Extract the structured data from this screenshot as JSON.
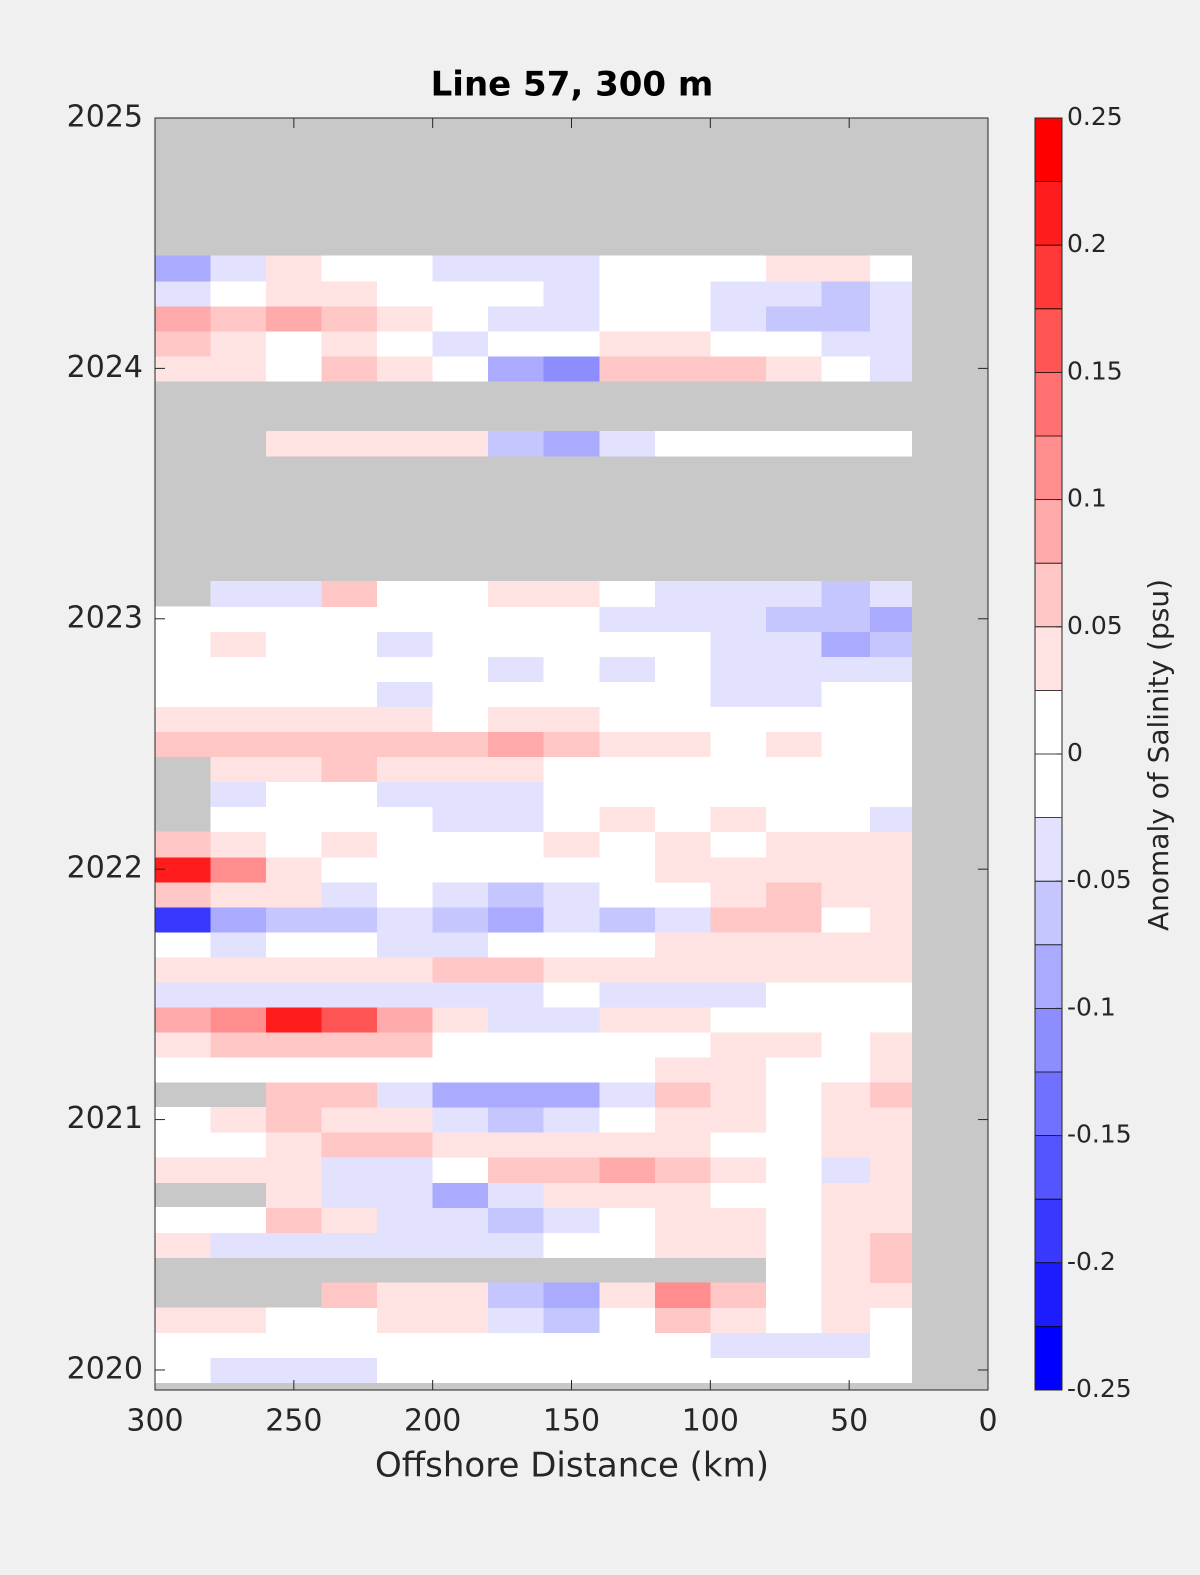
{
  "chart_data": {
    "type": "contourf",
    "title": "Line 57, 300 m",
    "x_label": "Offshore Distance (km)",
    "colorbar_label": "Anomaly of Salinity (psu)",
    "xlim": [
      300,
      0
    ],
    "xticks": [
      300,
      250,
      200,
      150,
      100,
      50,
      0
    ],
    "ylim": [
      2019.92,
      2025
    ],
    "yticks": [
      2020,
      2021,
      2022,
      2023,
      2024,
      2025
    ],
    "clim": [
      -0.25,
      0.25
    ],
    "cticks": [
      -0.25,
      -0.2,
      -0.15,
      -0.1,
      -0.05,
      0,
      0.05,
      0.1,
      0.15,
      0.2,
      0.25
    ],
    "colors": [
      "#0000ff",
      "#1c1cff",
      "#3838ff",
      "#5555ff",
      "#7171ff",
      "#8d8dff",
      "#aaaaff",
      "#c6c6ff",
      "#e2e2ff",
      "#ffffff",
      "#ffffff",
      "#ffe2e2",
      "#ffc6c6",
      "#ffaaaa",
      "#ff8d8d",
      "#ff7171",
      "#ff5555",
      "#ff3838",
      "#ff1c1c",
      "#ff0000"
    ],
    "missing_color": "#c8c8c8",
    "x": [
      290,
      270,
      250,
      230,
      210,
      190,
      170,
      150,
      130,
      110,
      90,
      70,
      50,
      35
    ],
    "y": [
      2020.0,
      2020.1,
      2020.2,
      2020.3,
      2020.4,
      2020.5,
      2020.6,
      2020.7,
      2020.8,
      2020.9,
      2021.0,
      2021.1,
      2021.2,
      2021.3,
      2021.4,
      2021.5,
      2021.6,
      2021.7,
      2021.8,
      2021.9,
      2022.0,
      2022.1,
      2022.2,
      2022.3,
      2022.4,
      2022.5,
      2022.6,
      2022.7,
      2022.8,
      2022.9,
      2023.0,
      2023.1,
      2023.2,
      2023.3,
      2023.4,
      2023.5,
      2023.6,
      2023.7,
      2023.8,
      2023.9,
      2024.0,
      2024.1,
      2024.2,
      2024.3,
      2024.4
    ],
    "z": [
      [
        0,
        -0.03,
        -0.04,
        -0.03,
        0,
        0,
        0,
        0,
        0,
        0,
        0,
        0,
        0,
        0
      ],
      [
        0,
        0,
        0,
        0,
        0,
        0,
        0,
        0,
        0.02,
        0,
        -0.03,
        -0.04,
        -0.03,
        0
      ],
      [
        0.03,
        0.03,
        0,
        0,
        0.03,
        0.03,
        -0.05,
        -0.06,
        0,
        0.05,
        0.04,
        0,
        0.03,
        0
      ],
      [
        null,
        null,
        null,
        0.05,
        0.04,
        0.04,
        -0.06,
        -0.08,
        0.03,
        0.1,
        0.05,
        0,
        0.04,
        0.04
      ],
      [
        null,
        null,
        null,
        null,
        null,
        null,
        null,
        null,
        null,
        null,
        null,
        0,
        0.04,
        0.06
      ],
      [
        0.03,
        -0.03,
        -0.03,
        -0.04,
        -0.04,
        -0.03,
        -0.03,
        0,
        0,
        0.04,
        0.04,
        0,
        0.04,
        0.05
      ],
      [
        0,
        0,
        0.05,
        0.03,
        -0.03,
        -0.05,
        -0.06,
        -0.04,
        0,
        0.03,
        0.03,
        0,
        0.03,
        0.03
      ],
      [
        null,
        null,
        0.03,
        -0.04,
        -0.05,
        -0.08,
        -0.05,
        0.03,
        0.03,
        0.03,
        0,
        0,
        0.03,
        0.03
      ],
      [
        0.03,
        0.03,
        0.03,
        -0.03,
        -0.04,
        0,
        0.07,
        0.07,
        0.08,
        0.07,
        0.03,
        0,
        -0.03,
        0.03
      ],
      [
        0,
        0,
        0.03,
        0.05,
        0.05,
        0.04,
        0.03,
        0.03,
        0.03,
        0.03,
        0,
        0,
        0.03,
        0.03
      ],
      [
        0,
        0.03,
        0.05,
        0.04,
        0.03,
        -0.04,
        -0.06,
        -0.03,
        0,
        0.04,
        0.03,
        0,
        0.03,
        0.03
      ],
      [
        null,
        null,
        0.06,
        0.05,
        -0.04,
        -0.08,
        -0.1,
        -0.08,
        -0.04,
        0.06,
        0.04,
        0,
        0.03,
        0.05
      ],
      [
        0,
        0,
        0,
        0,
        0,
        0,
        0,
        0,
        0,
        0.03,
        0.03,
        0,
        0,
        0.03
      ],
      [
        0.04,
        0.05,
        0.06,
        0.05,
        0.05,
        0,
        0,
        0,
        0,
        0,
        0.04,
        0.03,
        0,
        0.03
      ],
      [
        0.08,
        0.12,
        0.2,
        0.17,
        0.08,
        0.03,
        -0.05,
        -0.04,
        0.04,
        0.03,
        0,
        0,
        0,
        0
      ],
      [
        -0.04,
        -0.05,
        -0.04,
        -0.05,
        -0.05,
        -0.03,
        -0.03,
        0,
        -0.03,
        -0.04,
        -0.04,
        0,
        0,
        0
      ],
      [
        0.03,
        0.03,
        0.03,
        0.04,
        0.03,
        0.05,
        0.05,
        0.03,
        0.04,
        0.03,
        0.03,
        0.03,
        0.03,
        0.03
      ],
      [
        0,
        -0.03,
        0,
        0,
        -0.03,
        -0.03,
        0,
        0,
        0,
        0.03,
        0.03,
        0.04,
        0.03,
        0.03
      ],
      [
        -0.18,
        -0.08,
        -0.06,
        -0.07,
        -0.05,
        -0.07,
        -0.08,
        -0.05,
        -0.06,
        -0.03,
        0.06,
        0.05,
        0,
        0.03
      ],
      [
        0.05,
        0.04,
        0.03,
        -0.03,
        0,
        -0.03,
        -0.06,
        -0.03,
        0,
        0,
        0.04,
        0.06,
        0.04,
        0.04
      ],
      [
        0.2,
        0.1,
        0.04,
        0,
        0,
        0,
        0,
        0,
        0,
        0.03,
        0.03,
        0.04,
        0.03,
        0.03
      ],
      [
        0.06,
        0.03,
        0,
        0.03,
        0,
        0,
        0,
        0.03,
        0,
        0.03,
        0,
        0.03,
        0.03,
        0.03
      ],
      [
        null,
        0,
        0,
        0,
        0,
        -0.03,
        -0.03,
        0,
        0.03,
        0,
        0.03,
        0,
        0,
        -0.03
      ],
      [
        null,
        -0.03,
        0,
        0,
        -0.03,
        -0.04,
        -0.03,
        0,
        0,
        0,
        0,
        0,
        0,
        0
      ],
      [
        null,
        0.03,
        0.04,
        0.06,
        0.04,
        0.03,
        0.03,
        0,
        0,
        0,
        0,
        0,
        0,
        0
      ],
      [
        0.06,
        0.07,
        0.06,
        0.06,
        0.05,
        0.06,
        0.08,
        0.06,
        0.04,
        0.03,
        0,
        0.03,
        0,
        0
      ],
      [
        0.03,
        0.04,
        0.04,
        0.03,
        0.03,
        0,
        0.03,
        0.03,
        0,
        0,
        0,
        0,
        0,
        0
      ],
      [
        0,
        0,
        0,
        0,
        -0.03,
        0,
        0,
        0,
        0,
        0,
        -0.05,
        -0.03,
        0,
        0
      ],
      [
        0,
        0,
        0,
        0,
        0,
        0,
        -0.03,
        0,
        -0.03,
        0,
        -0.04,
        -0.04,
        -0.03,
        -0.03
      ],
      [
        0,
        0.03,
        0,
        0,
        -0.03,
        0,
        0,
        0,
        0,
        0,
        -0.04,
        -0.05,
        -0.08,
        -0.07
      ],
      [
        0,
        0,
        0,
        0,
        0,
        0,
        0,
        0,
        -0.03,
        -0.03,
        -0.03,
        -0.06,
        -0.07,
        -0.08
      ],
      [
        null,
        -0.03,
        -0.03,
        0.05,
        0,
        0,
        0.03,
        0.03,
        0,
        -0.03,
        -0.04,
        -0.05,
        -0.06,
        -0.05
      ],
      [
        null,
        null,
        null,
        null,
        null,
        null,
        null,
        null,
        null,
        null,
        null,
        null,
        null,
        null
      ],
      [
        null,
        null,
        null,
        null,
        null,
        null,
        null,
        null,
        null,
        null,
        null,
        null,
        null,
        null
      ],
      [
        null,
        null,
        null,
        null,
        null,
        null,
        null,
        null,
        null,
        null,
        null,
        null,
        null,
        null
      ],
      [
        null,
        null,
        null,
        null,
        null,
        null,
        null,
        null,
        null,
        null,
        null,
        null,
        null,
        null
      ],
      [
        null,
        null,
        null,
        null,
        null,
        null,
        null,
        null,
        null,
        null,
        null,
        null,
        null,
        null
      ],
      [
        null,
        null,
        0.03,
        0.04,
        0.04,
        0.03,
        -0.06,
        -0.09,
        -0.03,
        0,
        0,
        0,
        0.02,
        0.02
      ],
      [
        null,
        null,
        null,
        null,
        null,
        null,
        null,
        null,
        null,
        null,
        null,
        null,
        null,
        null
      ],
      [
        null,
        null,
        null,
        null,
        null,
        null,
        null,
        null,
        null,
        null,
        null,
        null,
        null,
        null
      ],
      [
        0.04,
        0.03,
        0,
        0.05,
        0.03,
        0,
        -0.1,
        -0.12,
        0.06,
        0.06,
        0.05,
        0.04,
        0,
        -0.05
      ],
      [
        0.05,
        0.04,
        0.02,
        0.03,
        0,
        -0.03,
        0,
        0,
        0.03,
        0.03,
        0,
        0,
        -0.04,
        -0.03
      ],
      [
        0.08,
        0.06,
        0.08,
        0.06,
        0.03,
        0,
        -0.04,
        -0.03,
        0,
        0,
        -0.03,
        -0.06,
        -0.06,
        -0.05
      ],
      [
        -0.05,
        0,
        0.04,
        0.04,
        0,
        0,
        0,
        -0.03,
        0,
        0,
        -0.03,
        -0.05,
        -0.06,
        -0.04
      ],
      [
        -0.08,
        -0.03,
        0.03,
        0,
        0,
        -0.04,
        -0.04,
        -0.03,
        0,
        0,
        0,
        0.04,
        0.03,
        0
      ]
    ]
  }
}
